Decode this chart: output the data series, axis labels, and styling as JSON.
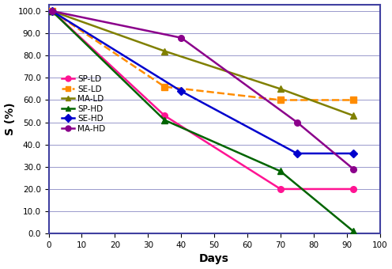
{
  "series": [
    {
      "label": "SP-LD",
      "color": "#FF1493",
      "marker": "o",
      "linestyle": "-",
      "linewidth": 1.8,
      "x": [
        1,
        35,
        70,
        92
      ],
      "y": [
        100.0,
        53.0,
        20.0,
        20.0
      ]
    },
    {
      "label": "SE-LD",
      "color": "#FF8C00",
      "marker": "s",
      "linestyle": "--",
      "linewidth": 1.8,
      "x": [
        1,
        35,
        70,
        92
      ],
      "y": [
        100.0,
        66.0,
        60.0,
        60.0
      ]
    },
    {
      "label": "MA-LD",
      "color": "#808000",
      "marker": "^",
      "linestyle": "-",
      "linewidth": 1.8,
      "x": [
        1,
        35,
        70,
        92
      ],
      "y": [
        100.0,
        82.0,
        65.0,
        53.0
      ]
    },
    {
      "label": "SP-HD",
      "color": "#006400",
      "marker": "^",
      "linestyle": "-",
      "linewidth": 1.8,
      "x": [
        1,
        35,
        70,
        92
      ],
      "y": [
        100.0,
        51.0,
        28.0,
        1.0
      ]
    },
    {
      "label": "SE-HD",
      "color": "#0000CD",
      "marker": "D",
      "linestyle": "-",
      "linewidth": 1.8,
      "x": [
        1,
        40,
        75,
        92
      ],
      "y": [
        100.0,
        64.0,
        36.0,
        36.0
      ]
    },
    {
      "label": "MA-HD",
      "color": "#8B008B",
      "marker": "o",
      "linestyle": "-",
      "linewidth": 1.8,
      "x": [
        1,
        40,
        75,
        92
      ],
      "y": [
        100.0,
        88.0,
        50.0,
        29.0
      ]
    }
  ],
  "xlabel": "Days",
  "ylabel": "S (%)",
  "xlim": [
    0,
    100
  ],
  "ylim": [
    0.0,
    103.0
  ],
  "yticks": [
    0.0,
    10.0,
    20.0,
    30.0,
    40.0,
    50.0,
    60.0,
    70.0,
    80.0,
    90.0,
    100.0
  ],
  "xticks": [
    0,
    10,
    20,
    30,
    40,
    50,
    60,
    70,
    80,
    90,
    100
  ],
  "background_color": "#ffffff",
  "grid_color": "#9999cc",
  "spine_color": "#4040a0"
}
